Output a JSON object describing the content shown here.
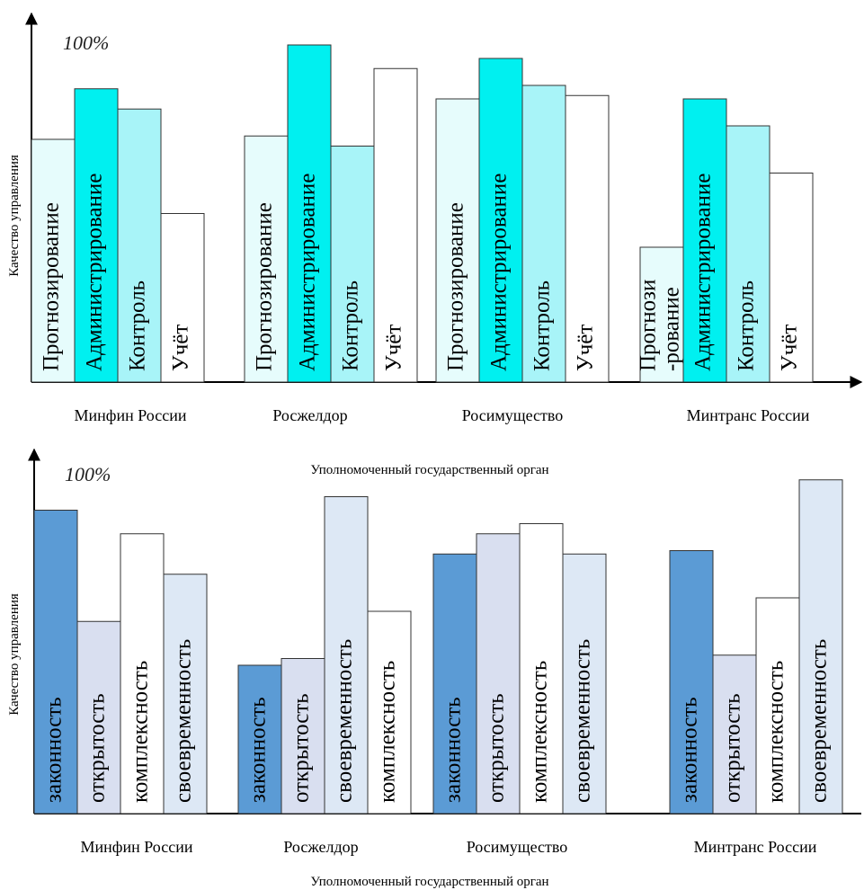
{
  "chart_data": [
    {
      "type": "bar",
      "annotation": "100%",
      "ylabel": "Качество управления",
      "xlabel": "Уполномоченный государственный орган",
      "ylim": [
        0,
        100
      ],
      "groups": [
        {
          "category": "Минфин России",
          "bars": [
            {
              "label": [
                "Прогнозирование"
              ],
              "value": 72,
              "color": "#e6fcfc"
            },
            {
              "label": [
                "Администрирование"
              ],
              "value": 87,
              "color": "#00f0f0"
            },
            {
              "label": [
                "Контроль"
              ],
              "value": 81,
              "color": "#a8f4f8"
            },
            {
              "label": [
                "Учёт"
              ],
              "value": 50,
              "color": "#ffffff"
            }
          ]
        },
        {
          "category": "Росжелдор",
          "bars": [
            {
              "label": [
                "Прогнозирование"
              ],
              "value": 73,
              "color": "#e6fcfc"
            },
            {
              "label": [
                "Администрирование"
              ],
              "value": 100,
              "color": "#00f0f0"
            },
            {
              "label": [
                "Контроль"
              ],
              "value": 70,
              "color": "#a8f4f8"
            },
            {
              "label": [
                "Учёт"
              ],
              "value": 93,
              "color": "#ffffff"
            }
          ]
        },
        {
          "category": "Росимущество",
          "bars": [
            {
              "label": [
                "Прогнозирование"
              ],
              "value": 84,
              "color": "#e6fcfc"
            },
            {
              "label": [
                "Администрирование"
              ],
              "value": 96,
              "color": "#00f0f0"
            },
            {
              "label": [
                "Контроль"
              ],
              "value": 88,
              "color": "#a8f4f8"
            },
            {
              "label": [
                "Учёт"
              ],
              "value": 85,
              "color": "#ffffff"
            }
          ]
        },
        {
          "category": "Минтранс России",
          "bars": [
            {
              "label": [
                "Прогнози",
                "-рование"
              ],
              "value": 40,
              "color": "#e6fcfc"
            },
            {
              "label": [
                "Администрирование"
              ],
              "value": 84,
              "color": "#00f0f0"
            },
            {
              "label": [
                "Контроль"
              ],
              "value": 76,
              "color": "#a8f4f8"
            },
            {
              "label": [
                "Учёт"
              ],
              "value": 62,
              "color": "#ffffff"
            }
          ]
        }
      ]
    },
    {
      "type": "bar",
      "annotation": "100%",
      "ylabel": "Качество управления",
      "xlabel": "Уполномоченный государственный орган",
      "ylim": [
        0,
        100
      ],
      "groups": [
        {
          "category": "Минфин России",
          "bars": [
            {
              "label": [
                "законность"
              ],
              "value": 90,
              "color": "#5b9bd5"
            },
            {
              "label": [
                "открытость"
              ],
              "value": 57,
              "color": "#d9dff0"
            },
            {
              "label": [
                "комплексность"
              ],
              "value": 83,
              "color": "#ffffff"
            },
            {
              "label": [
                "своевременность"
              ],
              "value": 71,
              "color": "#dde8f5"
            }
          ]
        },
        {
          "category": "Росжелдор",
          "bars": [
            {
              "label": [
                "законность"
              ],
              "value": 44,
              "color": "#5b9bd5"
            },
            {
              "label": [
                "открытость"
              ],
              "value": 46,
              "color": "#d9dff0"
            },
            {
              "label": [
                "своевременность"
              ],
              "value": 94,
              "color": "#dde8f5"
            },
            {
              "label": [
                "комплексность"
              ],
              "value": 60,
              "color": "#ffffff"
            }
          ]
        },
        {
          "category": "Росимущество",
          "bars": [
            {
              "label": [
                "законность"
              ],
              "value": 77,
              "color": "#5b9bd5"
            },
            {
              "label": [
                "открытость"
              ],
              "value": 83,
              "color": "#d9dff0"
            },
            {
              "label": [
                "комплексность"
              ],
              "value": 86,
              "color": "#ffffff"
            },
            {
              "label": [
                "своевременность"
              ],
              "value": 77,
              "color": "#dde8f5"
            }
          ]
        },
        {
          "category": "Минтранс России",
          "bars": [
            {
              "label": [
                "законность"
              ],
              "value": 78,
              "color": "#5b9bd5"
            },
            {
              "label": [
                "открытость"
              ],
              "value": 47,
              "color": "#d9dff0"
            },
            {
              "label": [
                "комплексность"
              ],
              "value": 64,
              "color": "#ffffff"
            },
            {
              "label": [
                "своевременность"
              ],
              "value": 99,
              "color": "#dde8f5"
            }
          ]
        }
      ]
    }
  ]
}
